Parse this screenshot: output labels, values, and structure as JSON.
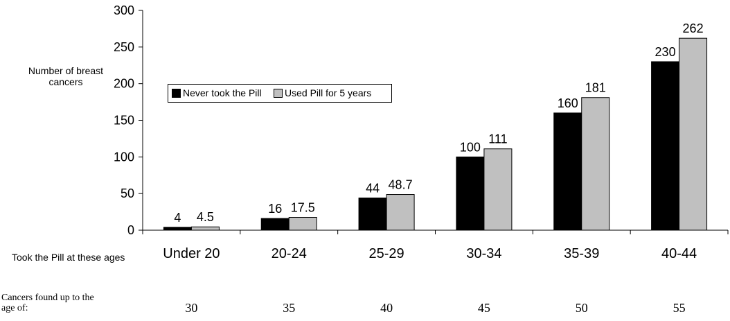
{
  "chart_data": {
    "type": "bar",
    "categories": [
      "Under 20",
      "20-24",
      "25-29",
      "30-34",
      "35-39",
      "40-44"
    ],
    "series": [
      {
        "name": "Never took the Pill",
        "values": [
          4,
          16,
          44,
          100,
          160,
          230
        ],
        "value_labels": [
          "4",
          "16",
          "44",
          "100",
          "160",
          "230"
        ],
        "color": "#000000"
      },
      {
        "name": "Used Pill for 5 years",
        "values": [
          4.5,
          17.5,
          48.7,
          111,
          181,
          262
        ],
        "value_labels": [
          "4.5",
          "17.5",
          "48.7",
          "111",
          "181",
          "262"
        ],
        "color": "#C0C0C0"
      }
    ],
    "ylabel": "Number of breast cancers",
    "xlabel": "Took the Pill at these ages",
    "ylim": [
      0,
      300
    ],
    "yticks": [
      "0",
      "50",
      "100",
      "150",
      "200",
      "250",
      "300"
    ],
    "grid": false,
    "legend": {
      "placement": "upper-left inside plot",
      "entries": [
        "Never took the Pill",
        "Used Pill for 5 years"
      ]
    },
    "secondary_row": {
      "label": "Cancers found up to the age of:",
      "values": [
        "30",
        "35",
        "40",
        "45",
        "50",
        "55"
      ]
    }
  }
}
